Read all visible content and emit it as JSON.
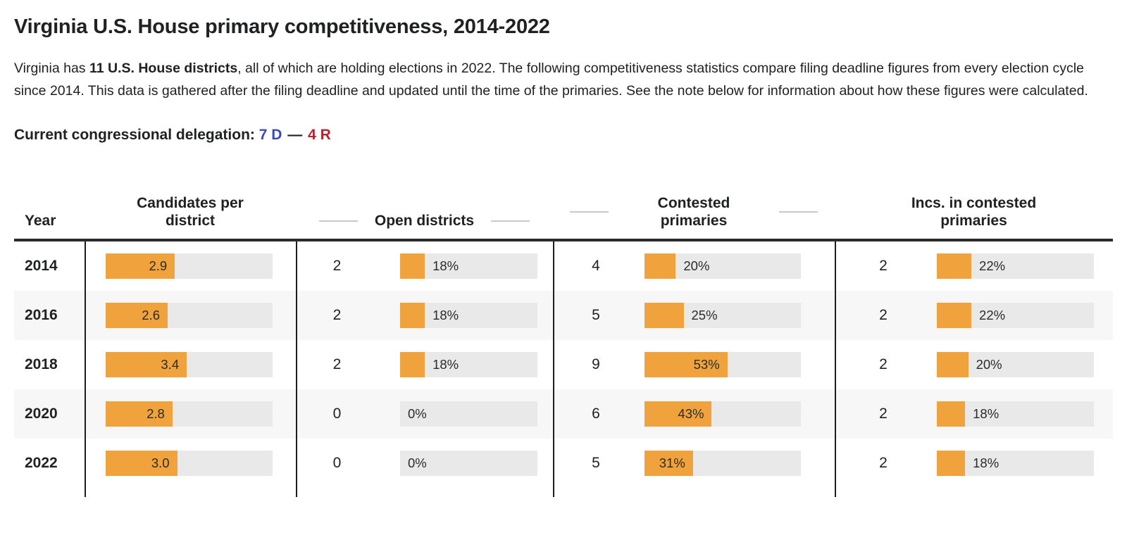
{
  "page": {
    "title": "Virginia U.S. House primary competitiveness, 2014-2022",
    "intro": {
      "prefix": "Virginia has ",
      "bold": "11 U.S. House districts",
      "suffix": ", all of which are holding elections in 2022. The following competitiveness statistics compare filing deadline figures from every election cycle since 2014. This data is gathered after the filing deadline and updated until the time of the primaries. See the note below for information about how these figures were calculated."
    },
    "delegation": {
      "label": "Current congressional delegation:",
      "dem": "7 D",
      "separator": "—",
      "rep": "4 R",
      "dem_color": "#3A46C3",
      "rep_color": "#BA222D"
    }
  },
  "chart_data": {
    "type": "table",
    "title": "Virginia U.S. House primary competitiveness, 2014-2022",
    "columns": [
      "Year",
      "Candidates per district",
      "Open districts",
      "Contested primaries",
      "Incs. in contested primaries"
    ],
    "bar_color": "#F0A33C",
    "bar_track_color": "#e9e9e9",
    "bar_scale": {
      "candidates_max": 7,
      "percent_max": 100
    },
    "rows": [
      {
        "year": "2014",
        "candidates": {
          "value": 2.9,
          "label": "2.9"
        },
        "open": {
          "count": "2",
          "pct": 18,
          "label": "18%"
        },
        "contested": {
          "count": "4",
          "pct": 20,
          "label": "20%"
        },
        "incs": {
          "count": "2",
          "pct": 22,
          "label": "22%"
        }
      },
      {
        "year": "2016",
        "candidates": {
          "value": 2.6,
          "label": "2.6"
        },
        "open": {
          "count": "2",
          "pct": 18,
          "label": "18%"
        },
        "contested": {
          "count": "5",
          "pct": 25,
          "label": "25%"
        },
        "incs": {
          "count": "2",
          "pct": 22,
          "label": "22%"
        }
      },
      {
        "year": "2018",
        "candidates": {
          "value": 3.4,
          "label": "3.4"
        },
        "open": {
          "count": "2",
          "pct": 18,
          "label": "18%"
        },
        "contested": {
          "count": "9",
          "pct": 53,
          "label": "53%"
        },
        "incs": {
          "count": "2",
          "pct": 20,
          "label": "20%"
        }
      },
      {
        "year": "2020",
        "candidates": {
          "value": 2.8,
          "label": "2.8"
        },
        "open": {
          "count": "0",
          "pct": 0,
          "label": "0%"
        },
        "contested": {
          "count": "6",
          "pct": 43,
          "label": "43%"
        },
        "incs": {
          "count": "2",
          "pct": 18,
          "label": "18%"
        }
      },
      {
        "year": "2022",
        "candidates": {
          "value": 3.0,
          "label": "3.0"
        },
        "open": {
          "count": "0",
          "pct": 0,
          "label": "0%"
        },
        "contested": {
          "count": "5",
          "pct": 31,
          "label": "31%"
        },
        "incs": {
          "count": "2",
          "pct": 18,
          "label": "18%"
        }
      }
    ]
  }
}
